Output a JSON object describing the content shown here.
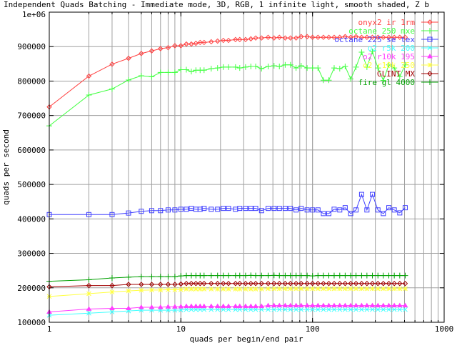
{
  "chart_data": {
    "type": "line",
    "title": "Independent Quads Batching - Immediate mode, 3D, RGB, 1 infinite light, smooth shaded, Z b",
    "xlabel": "quads per begin/end pair",
    "ylabel": "quads per second",
    "xscale": "log",
    "xlim": [
      1,
      1000
    ],
    "ylim": [
      100000,
      1000000
    ],
    "grid": true,
    "legend_position": "top-right",
    "x_tick_labels": [
      "1",
      "10",
      "100",
      "1000"
    ],
    "y_tick_labels": [
      "100000",
      "200000",
      "300000",
      "400000",
      "500000",
      "600000",
      "700000",
      "800000",
      "900000",
      "1e+06"
    ],
    "x": [
      1,
      2,
      3,
      4,
      5,
      6,
      7,
      8,
      9,
      10,
      11,
      12,
      13,
      14,
      15,
      17,
      19,
      21,
      23,
      26,
      28,
      31,
      34,
      37,
      41,
      46,
      51,
      56,
      62,
      68,
      75,
      82,
      91,
      100,
      110,
      121,
      133,
      146,
      161,
      177,
      195,
      214,
      236,
      259,
      285,
      314,
      345,
      380,
      418,
      460,
      506
    ],
    "series": [
      {
        "name": "onyx2 ir 1rm",
        "color": "#ff4040",
        "marker": "diamond",
        "values": [
          725000,
          814500,
          849000,
          866000,
          880000,
          887500,
          894000,
          897000,
          902500,
          902500,
          907500,
          907500,
          909500,
          912000,
          912000,
          914000,
          916000,
          918000,
          918000,
          920500,
          920500,
          920500,
          922500,
          925000,
          925000,
          927000,
          925000,
          927000,
          925000,
          925000,
          925000,
          929000,
          929000,
          927000,
          927000,
          927000,
          927000,
          927000,
          927000,
          929000,
          927000,
          929000,
          927000,
          927000,
          927000,
          927000,
          927000,
          927000,
          927000,
          927000,
          927000
        ]
      },
      {
        "name": "octane 250 mxe",
        "color": "#40ff40",
        "marker": "plus",
        "values": [
          670000,
          759500,
          777000,
          803000,
          815500,
          812500,
          825000,
          825000,
          825000,
          833000,
          833000,
          827500,
          831500,
          831500,
          831500,
          836000,
          838000,
          840500,
          840500,
          840500,
          838000,
          840500,
          842500,
          842500,
          836000,
          842500,
          844500,
          842500,
          847000,
          847000,
          838000,
          844500,
          838000,
          838000,
          838000,
          802500,
          802500,
          838000,
          836000,
          842500,
          806000,
          840500,
          884000,
          840500,
          886000,
          838000,
          802000,
          847000,
          838000,
          813000,
          847000
        ]
      },
      {
        "name": "octane 225 se tex",
        "color": "#4040ff",
        "marker": "square",
        "values": [
          412500,
          412500,
          412500,
          417000,
          422000,
          424000,
          424000,
          426000,
          426000,
          428000,
          428000,
          430500,
          428000,
          428000,
          430500,
          428000,
          428000,
          430500,
          430500,
          428000,
          430500,
          430500,
          430500,
          430500,
          424000,
          430500,
          430500,
          430500,
          430500,
          430500,
          426000,
          430500,
          426000,
          426000,
          426000,
          415500,
          415500,
          428000,
          426000,
          432500,
          415500,
          426000,
          471000,
          426000,
          471000,
          426000,
          415500,
          432500,
          426000,
          417500,
          432500
        ]
      },
      {
        "name": "o2 r5k 200",
        "color": "#40ffff",
        "marker": "cross",
        "values": [
          120500,
          126500,
          130000,
          133000,
          135000,
          135000,
          135000,
          135000,
          135000,
          135500,
          137000,
          137000,
          137000,
          137000,
          137000,
          137000,
          137000,
          137000,
          137000,
          137000,
          137000,
          137000,
          137000,
          137000,
          137000,
          137000,
          137000,
          137000,
          137000,
          137000,
          137000,
          137000,
          137000,
          137000,
          137000,
          137000,
          137000,
          137000,
          137000,
          137000,
          137000,
          137000,
          137000,
          137000,
          137000,
          137000,
          137000,
          137000,
          137000,
          137000,
          137000
        ]
      },
      {
        "name": "o2 r10k 195",
        "color": "#ff40ff",
        "marker": "triangle",
        "values": [
          130000,
          138500,
          140500,
          140500,
          143500,
          143500,
          143500,
          145000,
          145000,
          145500,
          146500,
          146500,
          146500,
          146500,
          146500,
          146500,
          146500,
          146500,
          146500,
          146500,
          146500,
          146500,
          146500,
          146500,
          146500,
          148500,
          148500,
          148500,
          148500,
          148500,
          148500,
          148500,
          148500,
          148500,
          148500,
          148500,
          148500,
          148500,
          148500,
          148500,
          148500,
          148500,
          148500,
          148500,
          148500,
          148500,
          148500,
          148500,
          148500,
          148500,
          148500
        ]
      },
      {
        "name": "o2 r10k 250",
        "color": "#ffff40",
        "marker": "star",
        "values": [
          175000,
          183000,
          188000,
          191000,
          193000,
          193500,
          193500,
          194500,
          194000,
          195000,
          196500,
          196500,
          196500,
          196500,
          196500,
          196500,
          196500,
          196500,
          196500,
          196500,
          196500,
          196500,
          196500,
          196500,
          196500,
          197500,
          197500,
          197500,
          197500,
          197500,
          197500,
          197500,
          197500,
          197500,
          197500,
          197500,
          197500,
          197500,
          197500,
          197500,
          197500,
          197500,
          197500,
          197500,
          197500,
          197500,
          197500,
          197500,
          197500,
          197500,
          197500
        ]
      },
      {
        "name": "GLINT MX",
        "color": "#a00000",
        "marker": "diamond",
        "values": [
          203000,
          206500,
          206500,
          210000,
          210000,
          210000,
          210000,
          210000,
          210000,
          211000,
          212500,
          212500,
          212500,
          212500,
          212500,
          212500,
          212500,
          212500,
          212500,
          212500,
          212500,
          212500,
          212500,
          212500,
          212500,
          212500,
          212500,
          212500,
          212500,
          212500,
          212500,
          212500,
          212500,
          212500,
          212500,
          212500,
          212500,
          212500,
          212500,
          212500,
          212500,
          212500,
          212500,
          212500,
          212500,
          212500,
          212500,
          212500,
          212500,
          212500,
          212500
        ]
      },
      {
        "name": "fire gl 4000",
        "color": "#00a000",
        "marker": "plus",
        "values": [
          219000,
          223500,
          228500,
          231000,
          232500,
          232500,
          232500,
          232500,
          232500,
          234500,
          235500,
          235500,
          235500,
          235500,
          235500,
          235500,
          235500,
          235500,
          235500,
          235500,
          235500,
          235500,
          236000,
          235500,
          235500,
          235500,
          236000,
          235500,
          235500,
          235500,
          235500,
          235500,
          235500,
          234500,
          235500,
          235500,
          235500,
          235500,
          235500,
          235500,
          235500,
          235500,
          235500,
          235500,
          235500,
          235500,
          235500,
          235500,
          235500,
          235500,
          235500
        ]
      }
    ]
  }
}
